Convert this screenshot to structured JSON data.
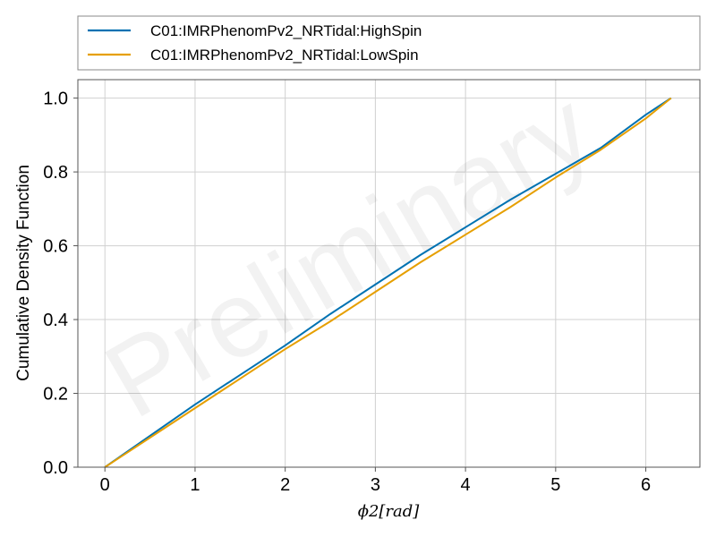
{
  "chart_data": {
    "type": "line",
    "xlabel": "ϕ2[rad]",
    "ylabel": "Cumulative Density Function",
    "xlim": [
      -0.3,
      6.6
    ],
    "ylim": [
      0.0,
      1.05
    ],
    "xticks": [
      0,
      1,
      2,
      3,
      4,
      5,
      6
    ],
    "xtick_labels": [
      "0",
      "1",
      "2",
      "3",
      "4",
      "5",
      "6"
    ],
    "yticks": [
      0.0,
      0.2,
      0.4,
      0.6,
      0.8,
      1.0
    ],
    "ytick_labels": [
      "0.0",
      "0.2",
      "0.4",
      "0.6",
      "0.8",
      "1.0"
    ],
    "grid": true,
    "legend_position": "top (above plot)",
    "watermark": "Preliminary",
    "series": [
      {
        "name": "C01:IMRPhenomPv2_NRTidal:HighSpin",
        "color": "#0072b2",
        "x": [
          0,
          0.5,
          1.0,
          1.5,
          2.0,
          2.5,
          3.0,
          3.5,
          4.0,
          4.5,
          5.0,
          5.5,
          6.0,
          6.28
        ],
        "y": [
          0.0,
          0.085,
          0.17,
          0.25,
          0.33,
          0.415,
          0.495,
          0.575,
          0.65,
          0.725,
          0.795,
          0.865,
          0.955,
          1.0
        ]
      },
      {
        "name": "C01:IMRPhenomPv2_NRTidal:LowSpin",
        "color": "#e69f00",
        "x": [
          0,
          0.5,
          1.0,
          1.5,
          2.0,
          2.5,
          3.0,
          3.5,
          4.0,
          4.5,
          5.0,
          5.5,
          6.0,
          6.28
        ],
        "y": [
          0.0,
          0.08,
          0.16,
          0.24,
          0.32,
          0.395,
          0.475,
          0.555,
          0.63,
          0.705,
          0.785,
          0.86,
          0.945,
          1.0
        ]
      }
    ]
  }
}
